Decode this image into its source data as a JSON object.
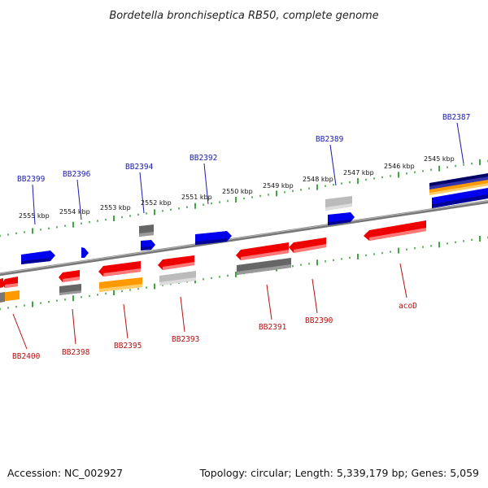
{
  "title": "Bordetella bronchiseptica RB50, complete genome",
  "footer": {
    "accession": "Accession: NC_002927",
    "topology": "Topology: circular; Length: 5,339,179 bp; Genes: 5,059"
  },
  "colors": {
    "forward_gene": "#0000ee",
    "reverse_gene": "#ee0000",
    "gray_dark": "#666666",
    "gray_light": "#bbbbbb",
    "orange": "#ff9900",
    "navy": "#000066",
    "tick": "#008800",
    "backbone": "#777777",
    "label_top": "#1a1ab0",
    "label_bottom": "#b81010"
  },
  "kbp_labels": [
    "2555 kbp",
    "2554 kbp",
    "2553 kbp",
    "2552 kbp",
    "2551 kbp",
    "2550 kbp",
    "2549 kbp",
    "2548 kbp",
    "2547 kbp",
    "2546 kbp",
    "2545 kbp"
  ],
  "top_gene_labels": [
    "BB2399",
    "BB2396",
    "BB2394",
    "BB2392",
    "BB2389",
    "BB2387"
  ],
  "bottom_gene_labels": [
    "BB2400",
    "BB2398",
    "BB2395",
    "BB2393",
    "BB2391",
    "BB2390",
    "acoD"
  ],
  "legend_colors": [
    "forward_gene",
    "reverse_gene",
    "gray_dark",
    "gray_light",
    "orange"
  ]
}
